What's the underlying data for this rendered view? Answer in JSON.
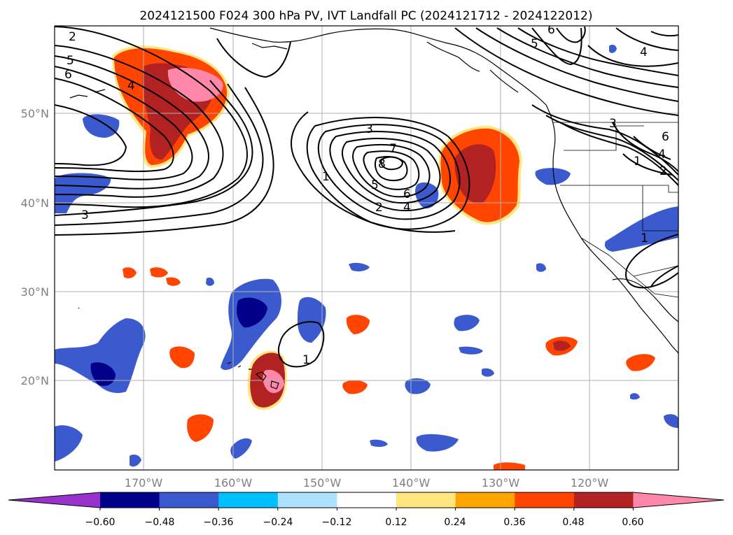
{
  "title": "2024121500 F024 300 hPa PV, IVT Landfall PC (2024121712 - 2024122012)",
  "lat_ticks": [
    "50°N",
    "40°N",
    "30°N",
    "20°N"
  ],
  "lon_ticks": [
    "170°W",
    "160°W",
    "150°W",
    "140°W",
    "130°W",
    "120°W"
  ],
  "colorbar": {
    "colors": [
      "#9932cc",
      "#00008b",
      "#3a5acd",
      "#00bfff",
      "#aee0ff",
      "#ffffff",
      "#ffe680",
      "#ffa500",
      "#ff4500",
      "#b22222",
      "#ff88aa"
    ],
    "tick_labels": [
      "−0.60",
      "−0.48",
      "−0.36",
      "−0.24",
      "−0.12",
      "0.12",
      "0.24",
      "0.36",
      "0.48",
      "0.60"
    ]
  },
  "contour_labels": [
    {
      "text": "2"
    },
    {
      "text": "5"
    },
    {
      "text": "6"
    },
    {
      "text": "4"
    },
    {
      "text": "3"
    },
    {
      "text": "3"
    },
    {
      "text": "7"
    },
    {
      "text": "8"
    },
    {
      "text": "1"
    },
    {
      "text": "5"
    },
    {
      "text": "6"
    },
    {
      "text": "2"
    },
    {
      "text": "4"
    },
    {
      "text": "1"
    },
    {
      "text": "6"
    },
    {
      "text": "5"
    },
    {
      "text": "4"
    },
    {
      "text": "6"
    },
    {
      "text": "4"
    },
    {
      "text": "2"
    },
    {
      "text": "1"
    },
    {
      "text": "3"
    },
    {
      "text": "1"
    }
  ]
}
